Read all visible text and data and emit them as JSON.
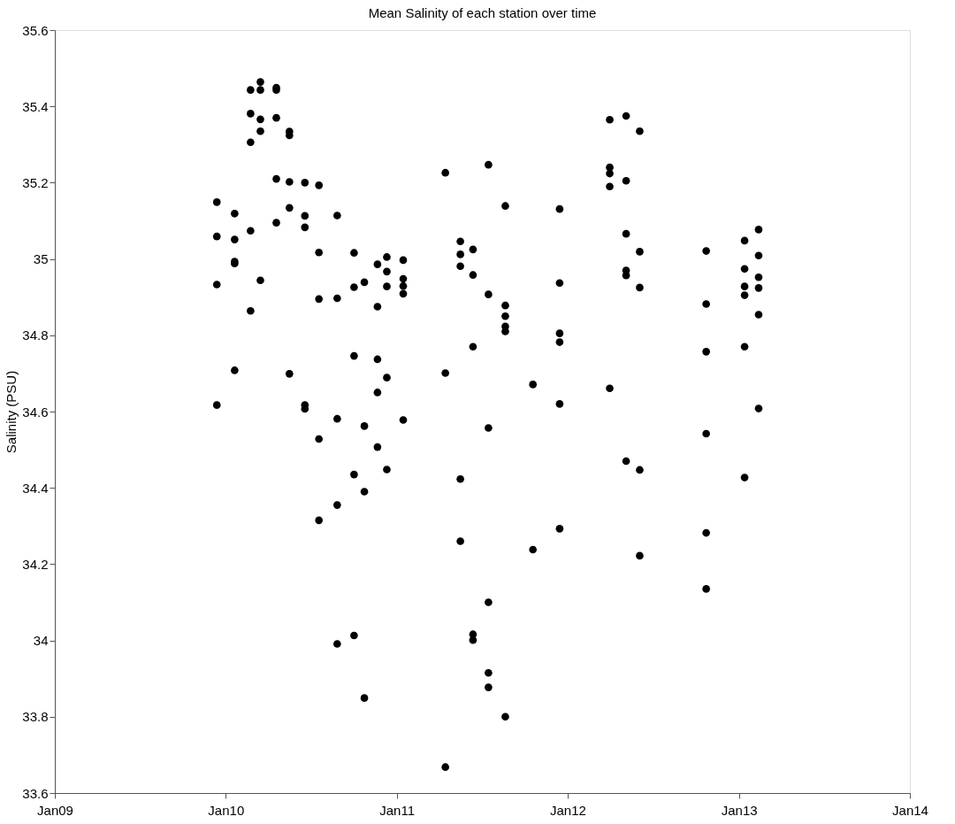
{
  "chart_data": {
    "type": "scatter",
    "title": "Mean Salinity of each station over time",
    "ylabel": "Salinity (PSU)",
    "xlim": [
      "2009-01-01",
      "2014-01-01"
    ],
    "xticks": [
      {
        "value": "2009-01-01",
        "label": "Jan09"
      },
      {
        "value": "2010-01-01",
        "label": "Jan10"
      },
      {
        "value": "2011-01-01",
        "label": "Jan11"
      },
      {
        "value": "2012-01-01",
        "label": "Jan12"
      },
      {
        "value": "2013-01-01",
        "label": "Jan13"
      },
      {
        "value": "2014-01-01",
        "label": "Jan14"
      }
    ],
    "ylim": [
      33.6,
      35.6
    ],
    "yticks": [
      33.6,
      33.8,
      34,
      34.2,
      34.4,
      34.6,
      34.8,
      35,
      35.2,
      35.4,
      35.6
    ],
    "grid": false,
    "legend": false,
    "marker": "circle",
    "series": [
      {
        "color": "#000000",
        "x": [
          "2009-12-13",
          "2009-12-13",
          "2009-12-13",
          "2009-12-13",
          "2010-01-20",
          "2010-01-20",
          "2010-01-20",
          "2010-01-20",
          "2010-01-20",
          "2010-02-23",
          "2010-02-23",
          "2010-02-23",
          "2010-02-23",
          "2010-02-23",
          "2010-03-16",
          "2010-03-16",
          "2010-03-16",
          "2010-03-16",
          "2010-03-16",
          "2010-04-19",
          "2010-04-19",
          "2010-04-19",
          "2010-04-19",
          "2010-04-19",
          "2010-05-17",
          "2010-05-17",
          "2010-05-17",
          "2010-05-17",
          "2010-05-17",
          "2010-06-19",
          "2010-06-19",
          "2010-06-19",
          "2010-06-19",
          "2010-06-19",
          "2010-07-19",
          "2010-07-19",
          "2010-07-19",
          "2010-07-19",
          "2010-07-19",
          "2010-08-27",
          "2010-08-27",
          "2010-08-27",
          "2010-08-27",
          "2010-08-27",
          "2010-10-02",
          "2010-10-02",
          "2010-10-02",
          "2010-10-02",
          "2010-10-02",
          "2010-10-24",
          "2010-10-24",
          "2010-10-24",
          "2010-10-24",
          "2010-11-21",
          "2010-11-21",
          "2010-11-21",
          "2010-11-21",
          "2010-11-21",
          "2010-12-11",
          "2010-12-11",
          "2010-12-11",
          "2010-12-11",
          "2010-12-11",
          "2011-01-15",
          "2011-01-15",
          "2011-01-15",
          "2011-01-15",
          "2011-01-15",
          "2011-04-15",
          "2011-04-15",
          "2011-04-15",
          "2011-05-17",
          "2011-05-17",
          "2011-05-17",
          "2011-05-17",
          "2011-05-17",
          "2011-06-13",
          "2011-06-13",
          "2011-06-13",
          "2011-06-13",
          "2011-06-13",
          "2011-07-16",
          "2011-07-16",
          "2011-07-16",
          "2011-07-16",
          "2011-07-16",
          "2011-07-16",
          "2011-08-21",
          "2011-08-21",
          "2011-08-21",
          "2011-08-21",
          "2011-08-21",
          "2011-08-21",
          "2011-10-19",
          "2011-10-19",
          "2011-12-15",
          "2011-12-15",
          "2011-12-15",
          "2011-12-15",
          "2011-12-15",
          "2011-12-15",
          "2012-03-31",
          "2012-03-31",
          "2012-03-31",
          "2012-03-31",
          "2012-03-31",
          "2012-05-05",
          "2012-05-05",
          "2012-05-05",
          "2012-05-05",
          "2012-05-05",
          "2012-05-05",
          "2012-06-03",
          "2012-06-03",
          "2012-06-03",
          "2012-06-03",
          "2012-06-03",
          "2012-10-23",
          "2012-10-23",
          "2012-10-23",
          "2012-10-23",
          "2012-10-23",
          "2012-10-23",
          "2013-01-13",
          "2013-01-13",
          "2013-01-13",
          "2013-01-13",
          "2013-01-13",
          "2013-01-13",
          "2013-02-12",
          "2013-02-12",
          "2013-02-12",
          "2013-02-12",
          "2013-02-12",
          "2013-02-12"
        ],
        "values": [
          35.149,
          35.059,
          34.933,
          34.617,
          35.119,
          35.051,
          34.993,
          34.988,
          34.708,
          35.443,
          35.381,
          35.306,
          35.074,
          34.864,
          35.464,
          35.443,
          35.366,
          35.335,
          34.944,
          35.449,
          35.443,
          35.37,
          35.21,
          35.095,
          35.334,
          35.324,
          35.202,
          35.134,
          34.699,
          35.2,
          35.113,
          35.083,
          34.617,
          34.607,
          35.193,
          35.017,
          34.895,
          34.528,
          34.315,
          35.114,
          34.897,
          34.581,
          34.355,
          33.991,
          35.016,
          34.926,
          34.746,
          34.435,
          34.013,
          34.939,
          34.562,
          34.39,
          33.849,
          34.986,
          34.875,
          34.737,
          34.65,
          34.507,
          35.005,
          34.967,
          34.928,
          34.689,
          34.448,
          34.997,
          34.948,
          34.929,
          34.909,
          34.578,
          35.226,
          34.701,
          33.668,
          35.046,
          35.012,
          34.981,
          34.423,
          34.26,
          35.025,
          34.958,
          34.77,
          34.016,
          34.001,
          35.247,
          34.907,
          34.557,
          34.1,
          33.915,
          33.877,
          35.139,
          34.878,
          34.85,
          34.823,
          34.81,
          33.8,
          34.671,
          34.238,
          35.131,
          34.937,
          34.805,
          34.782,
          34.62,
          34.293,
          35.365,
          35.24,
          35.224,
          35.19,
          34.661,
          35.375,
          35.205,
          35.066,
          34.97,
          34.957,
          34.47,
          35.335,
          35.019,
          34.925,
          34.447,
          34.222,
          35.021,
          34.882,
          34.757,
          34.542,
          34.282,
          34.135,
          35.048,
          34.974,
          34.928,
          34.905,
          34.77,
          34.427,
          35.077,
          35.009,
          34.952,
          34.924,
          34.854,
          34.608
        ]
      }
    ]
  }
}
